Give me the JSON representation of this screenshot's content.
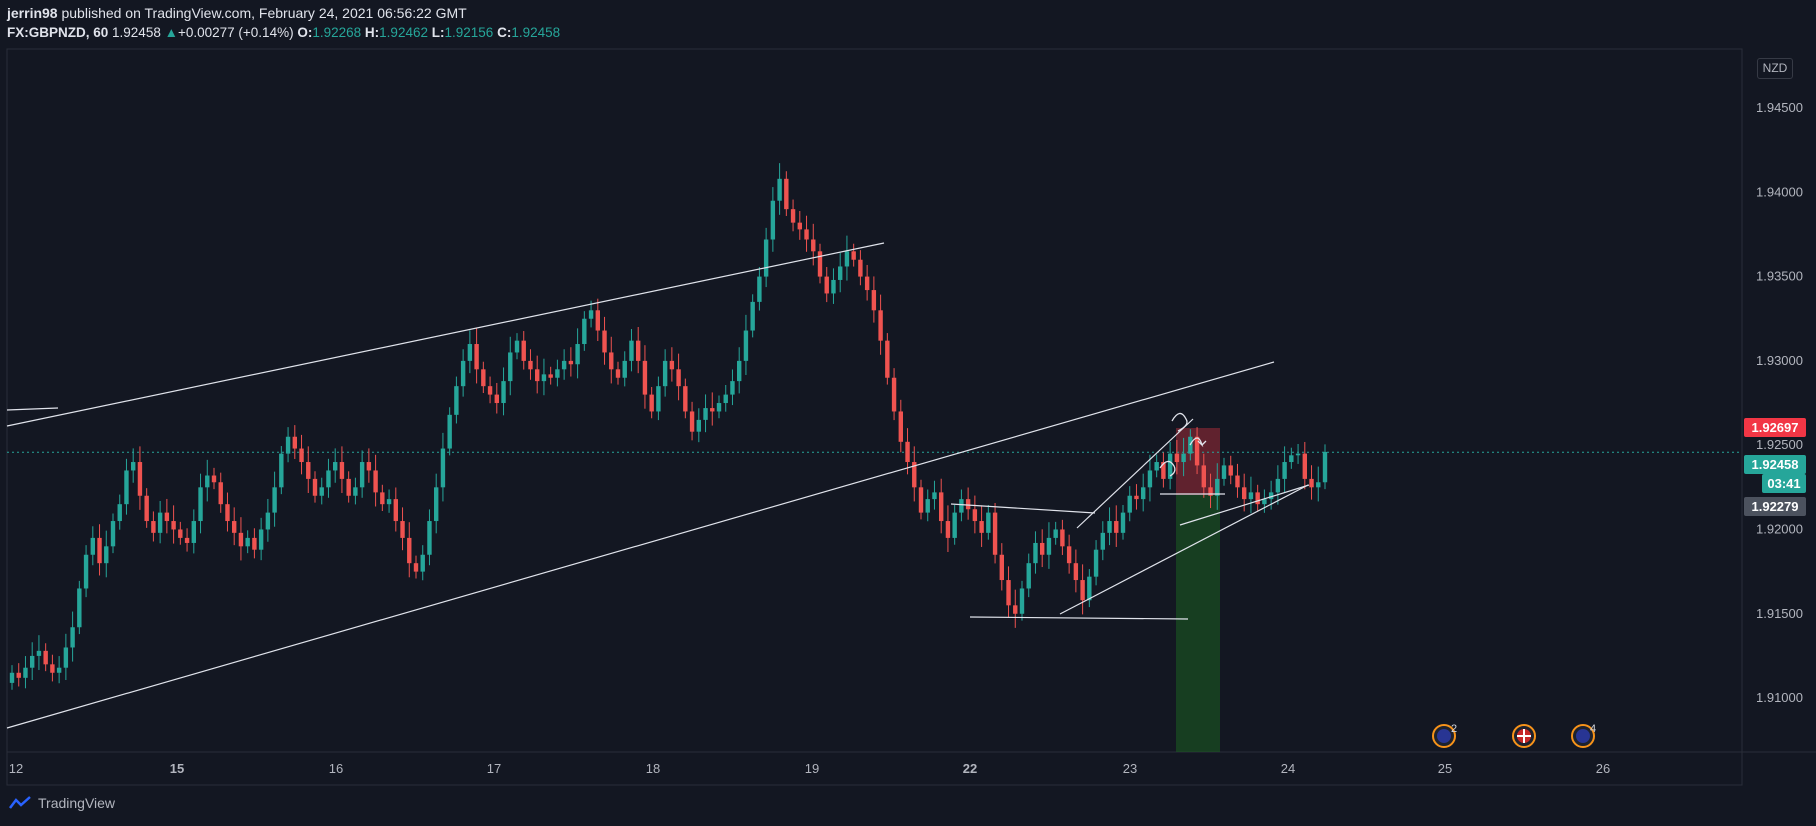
{
  "header": {
    "author": "jerrin98",
    "published": "published on TradingView.com, February 24, 2021 06:56:22 GMT",
    "symbol": "FX:GBPNZD, 60",
    "last": "1.92458",
    "change": "+0.00277 (+0.14%)",
    "o_label": "O:",
    "o": "1.92268",
    "h_label": "H:",
    "h": "1.92462",
    "l_label": "L:",
    "l": "1.92156",
    "c_label": "C:",
    "c": "1.92458"
  },
  "footer": {
    "brand": "TradingView"
  },
  "currency_badge": "NZD",
  "price_tags": {
    "alert": "1.92697",
    "current": "1.92458",
    "countdown": "03:41",
    "other": "1.92279"
  },
  "colors": {
    "background": "#131722",
    "up": "#26a69a",
    "down": "#ef5350",
    "alert": "#f23645",
    "grey_tag": "#4c525e"
  },
  "chart_data": {
    "type": "candlestick",
    "y_axis_labels": [
      "1.91000",
      "1.91500",
      "1.92000",
      "1.92500",
      "1.93000",
      "1.93500",
      "1.94000",
      "1.94500"
    ],
    "x_axis_labels": [
      "12",
      "15",
      "16",
      "17",
      "18",
      "19",
      "22",
      "23",
      "24",
      "25",
      "26"
    ],
    "ylim": [
      1.9068,
      1.9485
    ],
    "current_price_line": 1.92458,
    "events": [
      "2",
      "",
      "4"
    ],
    "closes": [
      1.9115,
      1.9112,
      1.9118,
      1.9125,
      1.9128,
      1.912,
      1.9115,
      1.9118,
      1.913,
      1.9142,
      1.9165,
      1.9185,
      1.9195,
      1.918,
      1.919,
      1.9205,
      1.9215,
      1.9235,
      1.924,
      1.922,
      1.9205,
      1.9198,
      1.921,
      1.9205,
      1.92,
      1.9195,
      1.9192,
      1.9205,
      1.9225,
      1.9232,
      1.9228,
      1.9215,
      1.9205,
      1.9198,
      1.919,
      1.9195,
      1.9188,
      1.92,
      1.921,
      1.9225,
      1.9245,
      1.9255,
      1.9248,
      1.924,
      1.923,
      1.922,
      1.9225,
      1.9235,
      1.924,
      1.923,
      1.922,
      1.9225,
      1.924,
      1.9235,
      1.9222,
      1.9215,
      1.9218,
      1.9205,
      1.9195,
      1.918,
      1.9175,
      1.9185,
      1.9205,
      1.9225,
      1.9248,
      1.9268,
      1.9285,
      1.93,
      1.931,
      1.9295,
      1.9285,
      1.928,
      1.9275,
      1.9288,
      1.9305,
      1.9312,
      1.93,
      1.9295,
      1.9288,
      1.9292,
      1.929,
      1.9295,
      1.93,
      1.9298,
      1.931,
      1.9325,
      1.933,
      1.9318,
      1.9305,
      1.9295,
      1.929,
      1.93,
      1.9312,
      1.93,
      1.928,
      1.927,
      1.9285,
      1.93,
      1.9295,
      1.9285,
      1.927,
      1.9258,
      1.9265,
      1.9272,
      1.927,
      1.9275,
      1.928,
      1.9288,
      1.93,
      1.9318,
      1.9335,
      1.935,
      1.9372,
      1.9395,
      1.9408,
      1.939,
      1.9382,
      1.9378,
      1.9372,
      1.9365,
      1.935,
      1.934,
      1.9348,
      1.9356,
      1.9365,
      1.936,
      1.935,
      1.9342,
      1.933,
      1.9312,
      1.929,
      1.927,
      1.9252,
      1.924,
      1.9225,
      1.921,
      1.9218,
      1.9222,
      1.9205,
      1.9195,
      1.921,
      1.9218,
      1.9212,
      1.9205,
      1.9198,
      1.921,
      1.9185,
      1.917,
      1.9155,
      1.915,
      1.9165,
      1.918,
      1.9192,
      1.9185,
      1.9195,
      1.92,
      1.919,
      1.918,
      1.917,
      1.9158,
      1.9172,
      1.9188,
      1.9198,
      1.9205,
      1.9198,
      1.921,
      1.922,
      1.9218,
      1.9225,
      1.9235,
      1.924,
      1.923,
      1.9245,
      1.924,
      1.9245,
      1.9255,
      1.9238,
      1.9225,
      1.922,
      1.923,
      1.9238,
      1.9232,
      1.9225,
      1.9218,
      1.9222,
      1.9215,
      1.9218,
      1.9222,
      1.923,
      1.924,
      1.9244,
      1.9245,
      1.923,
      1.9225,
      1.9228,
      1.9246
    ]
  }
}
